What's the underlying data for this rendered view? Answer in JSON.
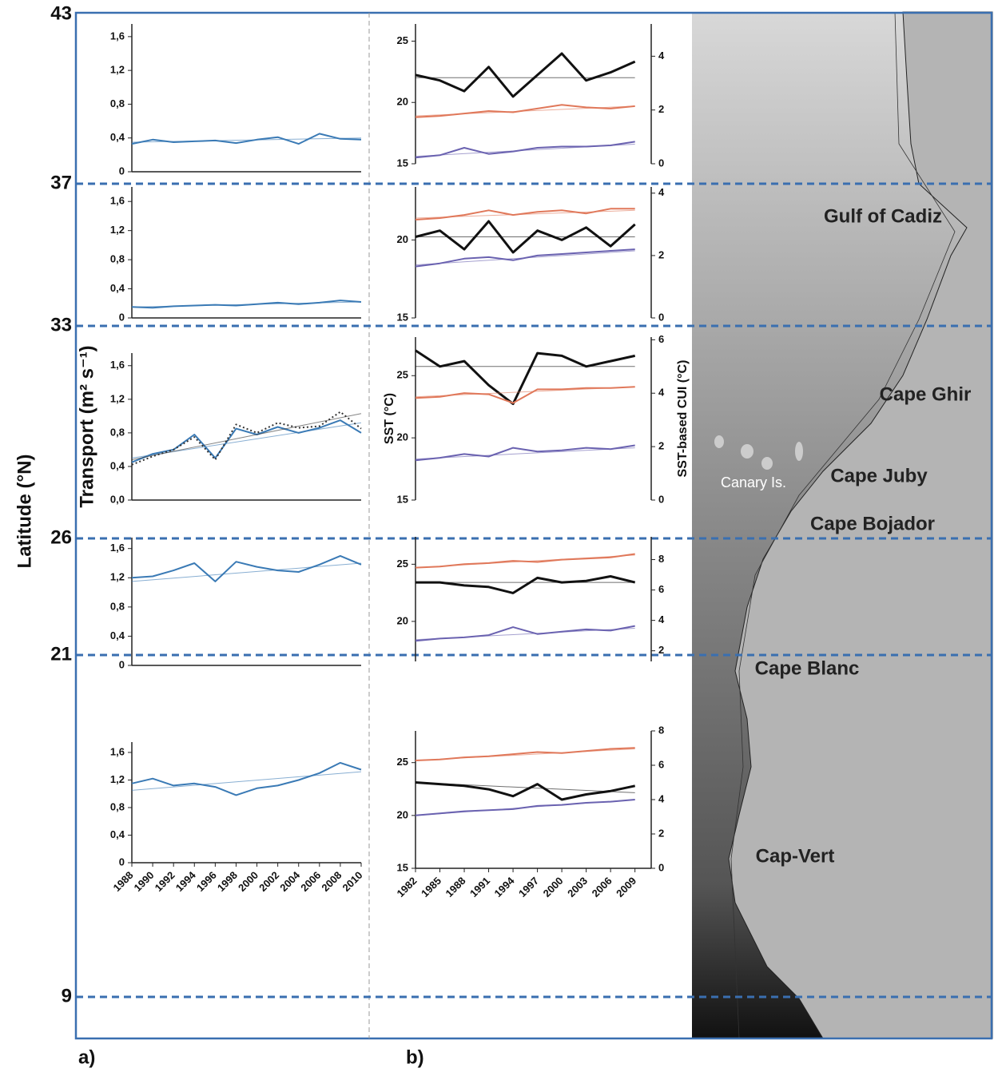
{
  "latitude_axis": {
    "label": "Latitude (°N)",
    "ticks": [
      43,
      37,
      33,
      26,
      21,
      9
    ]
  },
  "panel_labels": [
    "a)",
    "b)"
  ],
  "map": {
    "labels": [
      "Gulf of Cadiz",
      "Cape Ghir",
      "Canary Is.",
      "Cape Juby",
      "Cape Bojador",
      "Cape Blanc",
      "Cap-Vert"
    ]
  },
  "chart_data": [
    {
      "type": "line",
      "x": [
        1988,
        1990,
        1992,
        1994,
        1996,
        1998,
        2000,
        2002,
        2004,
        2006,
        2008,
        2010
      ],
      "xlim": [
        1988,
        2010
      ],
      "ylim": [
        0,
        1.75
      ],
      "yticks": [
        0,
        {
          "value": 0.4,
          "label": "0,4"
        },
        {
          "value": 0.8,
          "label": "0,8"
        },
        {
          "value": 1.2,
          "label": "1,2"
        },
        {
          "value": 1.6,
          "label": "1,6"
        }
      ],
      "series": [
        {
          "color": "#3a7ab5",
          "values": [
            0.33,
            0.38,
            0.35,
            0.36,
            0.37,
            0.34,
            0.38,
            0.41,
            0.33,
            0.45,
            0.39,
            0.38
          ],
          "trend": [
            0.35,
            0.4
          ]
        }
      ]
    },
    {
      "type": "line",
      "x": [
        1988,
        1990,
        1992,
        1994,
        1996,
        1998,
        2000,
        2002,
        2004,
        2006,
        2008,
        2010
      ],
      "xlim": [
        1988,
        2010
      ],
      "ylim": [
        0,
        1.8
      ],
      "yticks": [
        0,
        {
          "value": 0.4,
          "label": "0,4"
        },
        {
          "value": 0.8,
          "label": "0,8"
        },
        {
          "value": 1.2,
          "label": "1,2"
        },
        {
          "value": 1.6,
          "label": "1,6"
        }
      ],
      "series": [
        {
          "color": "#3a7ab5",
          "values": [
            0.15,
            0.14,
            0.16,
            0.17,
            0.18,
            0.17,
            0.19,
            0.21,
            0.19,
            0.21,
            0.24,
            0.22
          ],
          "trend": [
            0.15,
            0.22
          ]
        }
      ]
    },
    {
      "type": "line",
      "x": [
        1988,
        1990,
        1992,
        1994,
        1996,
        1998,
        2000,
        2002,
        2004,
        2006,
        2008,
        2010
      ],
      "xlim": [
        1988,
        2010
      ],
      "ylim": [
        0,
        1.75
      ],
      "y_label": "Transport (m² s⁻¹)",
      "yticks": [
        {
          "value": 0,
          "label": "0,0"
        },
        {
          "value": 0.4,
          "label": "0,4"
        },
        {
          "value": 0.8,
          "label": "0,8"
        },
        {
          "value": 1.2,
          "label": "1,2"
        },
        {
          "value": 1.6,
          "label": "1,6"
        }
      ],
      "series": [
        {
          "color": "#3a7ab5",
          "values": [
            0.45,
            0.55,
            0.6,
            0.78,
            0.5,
            0.85,
            0.78,
            0.87,
            0.8,
            0.86,
            0.95,
            0.8
          ],
          "trend": [
            0.5,
            0.92
          ]
        },
        {
          "color": "#333333",
          "style": "dotted",
          "values": [
            0.42,
            0.52,
            0.6,
            0.75,
            0.48,
            0.9,
            0.8,
            0.92,
            0.86,
            0.88,
            1.05,
            0.85
          ],
          "trend": [
            0.48,
            1.03
          ]
        }
      ]
    },
    {
      "type": "line",
      "x": [
        1988,
        1990,
        1992,
        1994,
        1996,
        1998,
        2000,
        2002,
        2004,
        2006,
        2008,
        2010
      ],
      "xlim": [
        1988,
        2010
      ],
      "ylim": [
        0,
        1.75
      ],
      "yticks": [
        0,
        {
          "value": 0.4,
          "label": "0,4"
        },
        {
          "value": 0.8,
          "label": "0,8"
        },
        {
          "value": 1.2,
          "label": "1,2"
        },
        {
          "value": 1.6,
          "label": "1,6"
        }
      ],
      "series": [
        {
          "color": "#3a7ab5",
          "values": [
            1.2,
            1.22,
            1.3,
            1.4,
            1.15,
            1.42,
            1.35,
            1.3,
            1.28,
            1.38,
            1.5,
            1.38
          ],
          "trend": [
            1.15,
            1.4
          ]
        }
      ]
    },
    {
      "type": "line",
      "x": [
        1988,
        1990,
        1992,
        1994,
        1996,
        1998,
        2000,
        2002,
        2004,
        2006,
        2008,
        2010
      ],
      "xlim": [
        1988,
        2010
      ],
      "ylim": [
        0,
        1.75
      ],
      "xticks": [
        1988,
        1990,
        1992,
        1994,
        1996,
        1998,
        2000,
        2002,
        2004,
        2006,
        2008,
        2010
      ],
      "yticks": [
        0,
        {
          "value": 0.4,
          "label": "0,4"
        },
        {
          "value": 0.8,
          "label": "0,8"
        },
        {
          "value": 1.2,
          "label": "1,2"
        },
        {
          "value": 1.6,
          "label": "1,6"
        }
      ],
      "series": [
        {
          "color": "#3a7ab5",
          "values": [
            1.15,
            1.22,
            1.12,
            1.15,
            1.1,
            0.98,
            1.08,
            1.12,
            1.2,
            1.3,
            1.45,
            1.35
          ],
          "trend": [
            1.05,
            1.32
          ]
        }
      ]
    },
    {
      "type": "line",
      "x": [
        1982,
        1985,
        1988,
        1991,
        1994,
        1997,
        2000,
        2003,
        2006,
        2009
      ],
      "xlim": [
        1982,
        2011
      ],
      "ylim": [
        15,
        26.4
      ],
      "y2lim": [
        0,
        5.2
      ],
      "yticks": [
        15,
        20,
        25
      ],
      "y2ticks": [
        0,
        2,
        4
      ],
      "series": [
        {
          "color": "#111111",
          "line_width": 3,
          "axis": "y2",
          "values": [
            3.3,
            3.1,
            2.7,
            3.6,
            2.5,
            3.3,
            4.1,
            3.1,
            3.4,
            3.8
          ],
          "trend": [
            3.2,
            3.2
          ]
        },
        {
          "color": "#e0785a",
          "values": [
            18.8,
            18.9,
            19.1,
            19.3,
            19.2,
            19.5,
            19.8,
            19.6,
            19.5,
            19.7
          ],
          "trend": [
            18.9,
            19.7
          ]
        },
        {
          "color": "#6a62b0",
          "values": [
            15.5,
            15.7,
            16.3,
            15.8,
            16.0,
            16.3,
            16.4,
            16.4,
            16.5,
            16.8
          ],
          "trend": [
            15.6,
            16.6
          ]
        }
      ]
    },
    {
      "type": "line",
      "x": [
        1982,
        1985,
        1988,
        1991,
        1994,
        1997,
        2000,
        2003,
        2006,
        2009
      ],
      "xlim": [
        1982,
        2011
      ],
      "ylim": [
        15,
        23.4
      ],
      "y2lim": [
        0,
        4.2
      ],
      "yticks": [
        15,
        20
      ],
      "y2ticks": [
        0,
        2,
        4
      ],
      "series": [
        {
          "color": "#111111",
          "line_width": 3,
          "axis": "y2",
          "values": [
            2.6,
            2.8,
            2.2,
            3.1,
            2.1,
            2.8,
            2.5,
            2.9,
            2.3,
            3.0
          ],
          "trend": [
            2.6,
            2.6
          ]
        },
        {
          "color": "#e0785a",
          "values": [
            21.3,
            21.4,
            21.6,
            21.9,
            21.6,
            21.8,
            21.9,
            21.7,
            22.0,
            22.0
          ],
          "trend": [
            21.4,
            21.9
          ]
        },
        {
          "color": "#6a62b0",
          "values": [
            18.3,
            18.5,
            18.8,
            18.9,
            18.7,
            19.0,
            19.1,
            19.2,
            19.3,
            19.4
          ],
          "trend": [
            18.4,
            19.3
          ]
        }
      ]
    },
    {
      "type": "line",
      "x": [
        1982,
        1985,
        1988,
        1991,
        1994,
        1997,
        2000,
        2003,
        2006,
        2009
      ],
      "xlim": [
        1982,
        2011
      ],
      "ylim": [
        15,
        28.1
      ],
      "y2lim": [
        0,
        6.1
      ],
      "y_label": "SST (°C)",
      "y2_label": "SST-based CUI (°C)",
      "yticks": [
        15,
        20,
        25
      ],
      "y2ticks": [
        0,
        2,
        4,
        6
      ],
      "series": [
        {
          "color": "#111111",
          "line_width": 3,
          "axis": "y2",
          "values": [
            5.6,
            5.0,
            5.2,
            4.3,
            3.6,
            5.5,
            5.4,
            5.0,
            5.2,
            5.4
          ],
          "trend": [
            5.0,
            5.0
          ]
        },
        {
          "color": "#e0785a",
          "values": [
            23.2,
            23.3,
            23.6,
            23.5,
            22.8,
            23.9,
            23.9,
            24.0,
            24.0,
            24.1
          ],
          "trend": [
            23.3,
            24.1
          ]
        },
        {
          "color": "#6a62b0",
          "values": [
            18.2,
            18.4,
            18.7,
            18.5,
            19.2,
            18.9,
            19.0,
            19.2,
            19.1,
            19.4
          ],
          "trend": [
            18.3,
            19.2
          ]
        }
      ]
    },
    {
      "type": "line",
      "x": [
        1982,
        1985,
        1988,
        1991,
        1994,
        1997,
        2000,
        2003,
        2006,
        2009
      ],
      "xlim": [
        1982,
        2011
      ],
      "ylim": [
        16.5,
        27.4
      ],
      "y2lim": [
        1.3,
        9.5
      ],
      "yticks": [
        20,
        25
      ],
      "y2ticks": [
        2,
        4,
        6,
        8
      ],
      "series": [
        {
          "color": "#111111",
          "line_width": 3,
          "axis": "y2",
          "values": [
            6.5,
            6.5,
            6.3,
            6.2,
            5.8,
            6.8,
            6.5,
            6.6,
            6.9,
            6.5
          ],
          "trend": [
            6.5,
            6.5
          ]
        },
        {
          "color": "#e0785a",
          "values": [
            24.7,
            24.8,
            25.0,
            25.1,
            25.3,
            25.2,
            25.4,
            25.5,
            25.6,
            25.9
          ],
          "trend": [
            24.7,
            25.8
          ]
        },
        {
          "color": "#6a62b0",
          "values": [
            18.3,
            18.5,
            18.6,
            18.8,
            19.5,
            18.9,
            19.1,
            19.3,
            19.2,
            19.6
          ],
          "trend": [
            18.4,
            19.4
          ]
        }
      ]
    },
    {
      "type": "line",
      "x": [
        1982,
        1985,
        1988,
        1991,
        1994,
        1997,
        2000,
        2003,
        2006,
        2009
      ],
      "xlim": [
        1982,
        2011
      ],
      "ylim": [
        15,
        28
      ],
      "y2lim": [
        0,
        8
      ],
      "xticks": [
        1982,
        1985,
        1988,
        1991,
        1994,
        1997,
        2000,
        2003,
        2006,
        2009
      ],
      "yticks": [
        15,
        20,
        25
      ],
      "y2ticks": [
        0,
        2,
        4,
        6,
        8
      ],
      "series": [
        {
          "color": "#111111",
          "line_width": 3,
          "axis": "y2",
          "values": [
            5.0,
            4.9,
            4.8,
            4.6,
            4.2,
            4.9,
            4.0,
            4.3,
            4.5,
            4.8
          ],
          "trend": [
            5.0,
            4.4
          ]
        },
        {
          "color": "#e0785a",
          "values": [
            25.2,
            25.3,
            25.5,
            25.6,
            25.8,
            26.0,
            25.9,
            26.1,
            26.3,
            26.4
          ],
          "trend": [
            25.2,
            26.3
          ]
        },
        {
          "color": "#6a62b0",
          "values": [
            20.0,
            20.2,
            20.4,
            20.5,
            20.6,
            20.9,
            21.0,
            21.2,
            21.3,
            21.5
          ],
          "trend": [
            20.0,
            21.5
          ]
        }
      ]
    }
  ]
}
